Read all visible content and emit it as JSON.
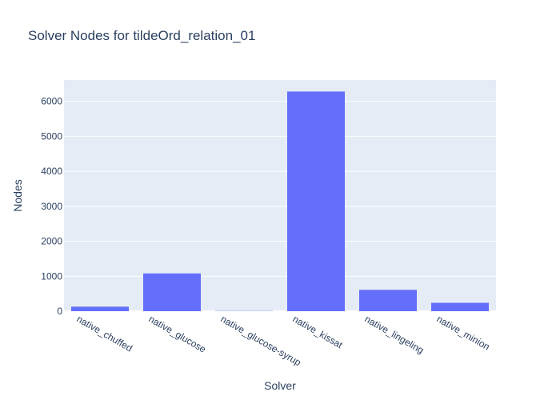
{
  "chart_data": {
    "type": "bar",
    "title": "Solver Nodes for tildeOrd_relation_01",
    "xlabel": "Solver",
    "ylabel": "Nodes",
    "categories": [
      "native_chuffed",
      "native_glucose",
      "native_glucose-syrup",
      "native_kissat",
      "native_lingeling",
      "native_minion"
    ],
    "values": [
      130,
      1080,
      8,
      6280,
      610,
      240
    ],
    "ylim": [
      0,
      6610
    ],
    "yticks": [
      0,
      1000,
      2000,
      3000,
      4000,
      5000,
      6000
    ],
    "grid": true,
    "bar_color": "#636efa",
    "plot_background": "#e5ecf6"
  }
}
